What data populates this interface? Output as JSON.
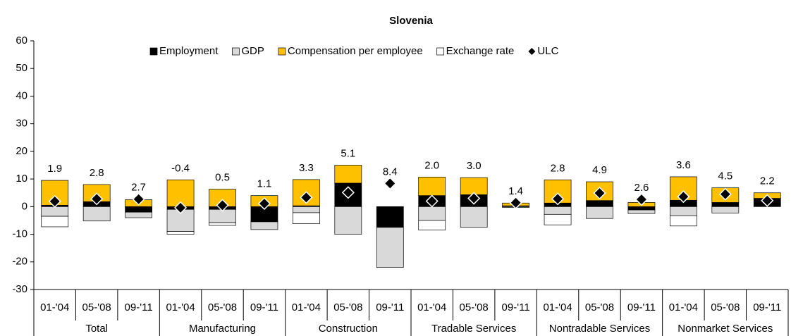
{
  "chart_data": {
    "type": "bar",
    "stacked": true,
    "title": "Slovenia",
    "categories": [
      "01-'04",
      "05-'08",
      "09-'11",
      "01-'04",
      "05-'08",
      "09-'11",
      "01-'04",
      "05-'08",
      "09-'11",
      "01-'04",
      "05-'08",
      "09-'11",
      "01-'04",
      "05-'08",
      "09-'11",
      "01-'04",
      "05-'08",
      "09-'11"
    ],
    "groups": [
      "Total",
      "Manufacturing",
      "Construction",
      "Tradable Services",
      "Nontradable Services",
      "Nonmarket Services"
    ],
    "series": [
      {
        "name": "Employment",
        "color": "#000000",
        "values": [
          0.5,
          1.8,
          -2,
          -1,
          -1,
          -5.5,
          0.3,
          8.5,
          -7.5,
          4,
          4.3,
          0.3,
          1.3,
          2.2,
          -1.2,
          2.3,
          1.5,
          3
        ]
      },
      {
        "name": "GDP",
        "color": "#d9d9d9",
        "values": [
          -3.5,
          -5.2,
          -2,
          -8,
          -4.8,
          -2.8,
          -2.2,
          -10,
          -14.5,
          -5,
          -7.5,
          -0.3,
          -2.8,
          -4.3,
          -1.3,
          -3.3,
          -2.3,
          0
        ]
      },
      {
        "name": "Compensation per employee",
        "color": "#ffc000",
        "values": [
          9,
          6.2,
          2.5,
          9.7,
          6.3,
          4,
          9.5,
          6.5,
          0,
          6.7,
          6.2,
          1,
          8.4,
          6.8,
          1.5,
          8.5,
          5.3,
          2
        ]
      },
      {
        "name": "Exchange rate",
        "color": "#ffffff",
        "values": [
          -3.8,
          0,
          0,
          -1,
          -1,
          0,
          -4,
          0,
          0,
          -3.5,
          0,
          0,
          -3.8,
          0,
          0,
          -3.7,
          0,
          0
        ]
      },
      {
        "name": "ULC",
        "type": "scatter",
        "marker": "diamond",
        "color": "#000000",
        "values": [
          1.9,
          2.8,
          2.7,
          -0.4,
          0.5,
          1.1,
          3.3,
          5.1,
          8.4,
          2.0,
          3.0,
          1.4,
          2.8,
          4.9,
          2.6,
          3.6,
          4.5,
          2.2
        ],
        "value_labels": [
          "1.9",
          "2.8",
          "2.7",
          "-0.4",
          "0.5",
          "1.1",
          "3.3",
          "5.1",
          "8.4",
          "2.0",
          "3.0",
          "1.4",
          "2.8",
          "4.9",
          "2.6",
          "3.6",
          "4.5",
          "2.2"
        ]
      }
    ],
    "ylim": [
      -30,
      60
    ],
    "yticks": [
      -30,
      -20,
      -10,
      0,
      10,
      20,
      30,
      40,
      50,
      60
    ],
    "grid": false,
    "legend": "top"
  }
}
